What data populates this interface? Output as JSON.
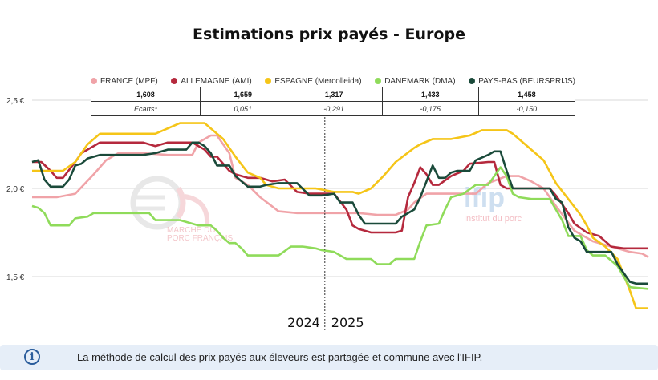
{
  "chart_data": {
    "type": "line",
    "title": "Estimations prix payés - Europe",
    "ylim": [
      1.25,
      2.65
    ],
    "ytick_labels": [
      "2,5 €",
      "2,0 €",
      "1,5 €"
    ],
    "yticks": [
      2.5,
      2.0,
      1.5
    ],
    "period_labels": [
      "2024",
      "2025"
    ],
    "divider_x": 47.5,
    "x_range": [
      0,
      100
    ],
    "series": [
      {
        "name": "FRANCE (MPF)",
        "color": "#f0a3a8",
        "latest": "1,608",
        "ecart": "",
        "points": [
          [
            0,
            1.95
          ],
          [
            4,
            1.95
          ],
          [
            7,
            1.97
          ],
          [
            10,
            2.08
          ],
          [
            12,
            2.16
          ],
          [
            14,
            2.2
          ],
          [
            18,
            2.2
          ],
          [
            22,
            2.19
          ],
          [
            26,
            2.19
          ],
          [
            27,
            2.26
          ],
          [
            29,
            2.3
          ],
          [
            30,
            2.3
          ],
          [
            32,
            2.2
          ],
          [
            33,
            2.06
          ],
          [
            35,
            2.02
          ],
          [
            37,
            1.95
          ],
          [
            40,
            1.87
          ],
          [
            43,
            1.86
          ],
          [
            46,
            1.86
          ],
          [
            49,
            1.86
          ],
          [
            53,
            1.86
          ],
          [
            56,
            1.85
          ],
          [
            59,
            1.85
          ],
          [
            61,
            1.88
          ],
          [
            62,
            1.92
          ],
          [
            64,
            1.97
          ],
          [
            68,
            1.97
          ],
          [
            72,
            1.97
          ],
          [
            74,
            2.03
          ],
          [
            77,
            2.07
          ],
          [
            79,
            2.07
          ],
          [
            81,
            2.04
          ],
          [
            83,
            2.0
          ],
          [
            85,
            1.9
          ],
          [
            88,
            1.76
          ],
          [
            91,
            1.7
          ],
          [
            94,
            1.67
          ],
          [
            97,
            1.64
          ],
          [
            99,
            1.63
          ],
          [
            100,
            1.61
          ]
        ]
      },
      {
        "name": "ALLEMAGNE (AMI)",
        "color": "#b5293d",
        "latest": "1,659",
        "ecart": "0,051",
        "points": [
          [
            0,
            2.15
          ],
          [
            1.5,
            2.15
          ],
          [
            3,
            2.1
          ],
          [
            4,
            2.06
          ],
          [
            5,
            2.06
          ],
          [
            7,
            2.15
          ],
          [
            8,
            2.2
          ],
          [
            11,
            2.26
          ],
          [
            14,
            2.26
          ],
          [
            18,
            2.26
          ],
          [
            20,
            2.24
          ],
          [
            22,
            2.26
          ],
          [
            26,
            2.26
          ],
          [
            28,
            2.22
          ],
          [
            29,
            2.18
          ],
          [
            30,
            2.18
          ],
          [
            32,
            2.1
          ],
          [
            33,
            2.08
          ],
          [
            35,
            2.06
          ],
          [
            37,
            2.06
          ],
          [
            39,
            2.04
          ],
          [
            41,
            2.05
          ],
          [
            43,
            1.98
          ],
          [
            45,
            1.97
          ],
          [
            47,
            1.97
          ],
          [
            49,
            1.97
          ],
          [
            51,
            1.88
          ],
          [
            52,
            1.79
          ],
          [
            53,
            1.77
          ],
          [
            55,
            1.75
          ],
          [
            59,
            1.75
          ],
          [
            60,
            1.76
          ],
          [
            61,
            1.95
          ],
          [
            62,
            2.03
          ],
          [
            63,
            2.12
          ],
          [
            64,
            2.08
          ],
          [
            65,
            2.02
          ],
          [
            66,
            2.02
          ],
          [
            68,
            2.07
          ],
          [
            70,
            2.1
          ],
          [
            71,
            2.14
          ],
          [
            74,
            2.15
          ],
          [
            75,
            2.15
          ],
          [
            76,
            2.02
          ],
          [
            77,
            2.0
          ],
          [
            79,
            2.0
          ],
          [
            82,
            2.0
          ],
          [
            84,
            2.0
          ],
          [
            85,
            1.96
          ],
          [
            87,
            1.86
          ],
          [
            88,
            1.8
          ],
          [
            90,
            1.75
          ],
          [
            92,
            1.73
          ],
          [
            94,
            1.67
          ],
          [
            96,
            1.66
          ],
          [
            100,
            1.66
          ]
        ]
      },
      {
        "name": "ESPAGNE (Mercolleida)",
        "color": "#f5c518",
        "latest": "1,317",
        "ecart": "-0,291",
        "points": [
          [
            0,
            2.1
          ],
          [
            5,
            2.1
          ],
          [
            7,
            2.15
          ],
          [
            9,
            2.25
          ],
          [
            11,
            2.31
          ],
          [
            14,
            2.31
          ],
          [
            17,
            2.31
          ],
          [
            20,
            2.31
          ],
          [
            22,
            2.34
          ],
          [
            24,
            2.37
          ],
          [
            27,
            2.37
          ],
          [
            28,
            2.37
          ],
          [
            29,
            2.34
          ],
          [
            31,
            2.28
          ],
          [
            33,
            2.18
          ],
          [
            35,
            2.09
          ],
          [
            37,
            2.06
          ],
          [
            38,
            2.02
          ],
          [
            40,
            2.0
          ],
          [
            43,
            2.0
          ],
          [
            46,
            2.0
          ],
          [
            49,
            1.98
          ],
          [
            51,
            1.98
          ],
          [
            52,
            1.98
          ],
          [
            53,
            1.97
          ],
          [
            55,
            2.0
          ],
          [
            57,
            2.07
          ],
          [
            59,
            2.15
          ],
          [
            62,
            2.23
          ],
          [
            63,
            2.25
          ],
          [
            65,
            2.28
          ],
          [
            68,
            2.28
          ],
          [
            71,
            2.3
          ],
          [
            73,
            2.33
          ],
          [
            77,
            2.33
          ],
          [
            78,
            2.31
          ],
          [
            80,
            2.25
          ],
          [
            83,
            2.16
          ],
          [
            85,
            2.03
          ],
          [
            87,
            1.94
          ],
          [
            89,
            1.85
          ],
          [
            90,
            1.79
          ],
          [
            91,
            1.72
          ],
          [
            93,
            1.67
          ],
          [
            95,
            1.6
          ],
          [
            97,
            1.42
          ],
          [
            98,
            1.32
          ],
          [
            100,
            1.32
          ]
        ]
      },
      {
        "name": "DANEMARK (DMA)",
        "color": "#8fdb5a",
        "latest": "1,433",
        "ecart": "-0,175",
        "points": [
          [
            0,
            1.9
          ],
          [
            1,
            1.89
          ],
          [
            2,
            1.86
          ],
          [
            3,
            1.79
          ],
          [
            6,
            1.79
          ],
          [
            7,
            1.83
          ],
          [
            9,
            1.84
          ],
          [
            10,
            1.86
          ],
          [
            14,
            1.86
          ],
          [
            18,
            1.86
          ],
          [
            19,
            1.86
          ],
          [
            20,
            1.82
          ],
          [
            24,
            1.82
          ],
          [
            26,
            1.8
          ],
          [
            27,
            1.79
          ],
          [
            29,
            1.79
          ],
          [
            30,
            1.76
          ],
          [
            31,
            1.72
          ],
          [
            32,
            1.69
          ],
          [
            33,
            1.69
          ],
          [
            34,
            1.66
          ],
          [
            35,
            1.62
          ],
          [
            39,
            1.62
          ],
          [
            40,
            1.62
          ],
          [
            42,
            1.67
          ],
          [
            44,
            1.67
          ],
          [
            46,
            1.66
          ],
          [
            47,
            1.65
          ],
          [
            49,
            1.64
          ],
          [
            50,
            1.62
          ],
          [
            51,
            1.6
          ],
          [
            53,
            1.6
          ],
          [
            55,
            1.6
          ],
          [
            56,
            1.57
          ],
          [
            58,
            1.57
          ],
          [
            59,
            1.6
          ],
          [
            62,
            1.6
          ],
          [
            63,
            1.7
          ],
          [
            64,
            1.79
          ],
          [
            66,
            1.8
          ],
          [
            67,
            1.88
          ],
          [
            68,
            1.95
          ],
          [
            70,
            1.97
          ],
          [
            72,
            2.02
          ],
          [
            74,
            2.02
          ],
          [
            75,
            2.07
          ],
          [
            76,
            2.12
          ],
          [
            77,
            2.07
          ],
          [
            78,
            1.97
          ],
          [
            79,
            1.95
          ],
          [
            81,
            1.94
          ],
          [
            84,
            1.94
          ],
          [
            86,
            1.82
          ],
          [
            87,
            1.73
          ],
          [
            89,
            1.73
          ],
          [
            90,
            1.65
          ],
          [
            91,
            1.62
          ],
          [
            93,
            1.62
          ],
          [
            95,
            1.56
          ],
          [
            96,
            1.5
          ],
          [
            97,
            1.44
          ],
          [
            100,
            1.43
          ]
        ]
      },
      {
        "name": "PAYS-BAS (BEURSPRIJS)",
        "color": "#1a4a3a",
        "latest": "1,458",
        "ecart": "-0,150",
        "points": [
          [
            0,
            2.15
          ],
          [
            1,
            2.16
          ],
          [
            2,
            2.05
          ],
          [
            3,
            2.01
          ],
          [
            5,
            2.01
          ],
          [
            6,
            2.05
          ],
          [
            7,
            2.13
          ],
          [
            8,
            2.14
          ],
          [
            9,
            2.17
          ],
          [
            11,
            2.19
          ],
          [
            14,
            2.19
          ],
          [
            18,
            2.19
          ],
          [
            20,
            2.2
          ],
          [
            22,
            2.22
          ],
          [
            25,
            2.22
          ],
          [
            26,
            2.26
          ],
          [
            27,
            2.26
          ],
          [
            28,
            2.24
          ],
          [
            29,
            2.2
          ],
          [
            30,
            2.13
          ],
          [
            32,
            2.13
          ],
          [
            33,
            2.07
          ],
          [
            35,
            2.01
          ],
          [
            37,
            2.01
          ],
          [
            38,
            2.02
          ],
          [
            40,
            2.03
          ],
          [
            43,
            2.03
          ],
          [
            45,
            1.96
          ],
          [
            47,
            1.96
          ],
          [
            49,
            1.97
          ],
          [
            50,
            1.92
          ],
          [
            52,
            1.92
          ],
          [
            53,
            1.85
          ],
          [
            54,
            1.8
          ],
          [
            56,
            1.8
          ],
          [
            59,
            1.8
          ],
          [
            60,
            1.84
          ],
          [
            62,
            1.88
          ],
          [
            63,
            1.95
          ],
          [
            64,
            2.04
          ],
          [
            65,
            2.13
          ],
          [
            66,
            2.06
          ],
          [
            67,
            2.06
          ],
          [
            68,
            2.09
          ],
          [
            69,
            2.1
          ],
          [
            71,
            2.1
          ],
          [
            72,
            2.16
          ],
          [
            74,
            2.19
          ],
          [
            75,
            2.21
          ],
          [
            76,
            2.21
          ],
          [
            77,
            2.1
          ],
          [
            78,
            2.0
          ],
          [
            80,
            2.0
          ],
          [
            82,
            2.0
          ],
          [
            84,
            2.0
          ],
          [
            85,
            1.94
          ],
          [
            86,
            1.92
          ],
          [
            87,
            1.78
          ],
          [
            88,
            1.72
          ],
          [
            89,
            1.7
          ],
          [
            90,
            1.64
          ],
          [
            92,
            1.64
          ],
          [
            94,
            1.64
          ],
          [
            95,
            1.57
          ],
          [
            96,
            1.52
          ],
          [
            97,
            1.47
          ],
          [
            98,
            1.46
          ],
          [
            100,
            1.46
          ]
        ]
      }
    ]
  },
  "table": {
    "header_label": "",
    "row2_label": "Ecarts*"
  },
  "watermarks": {
    "left_top": "MARCHÉ DU",
    "left_bottom": "PORC FRANÇAIS",
    "right_logo": "ifip",
    "right_sub": "Institut du porc"
  },
  "info": {
    "icon": "info-icon",
    "text": "La méthode de calcul des prix payés aux éleveurs est partagée et commune avec l'IFIP."
  }
}
